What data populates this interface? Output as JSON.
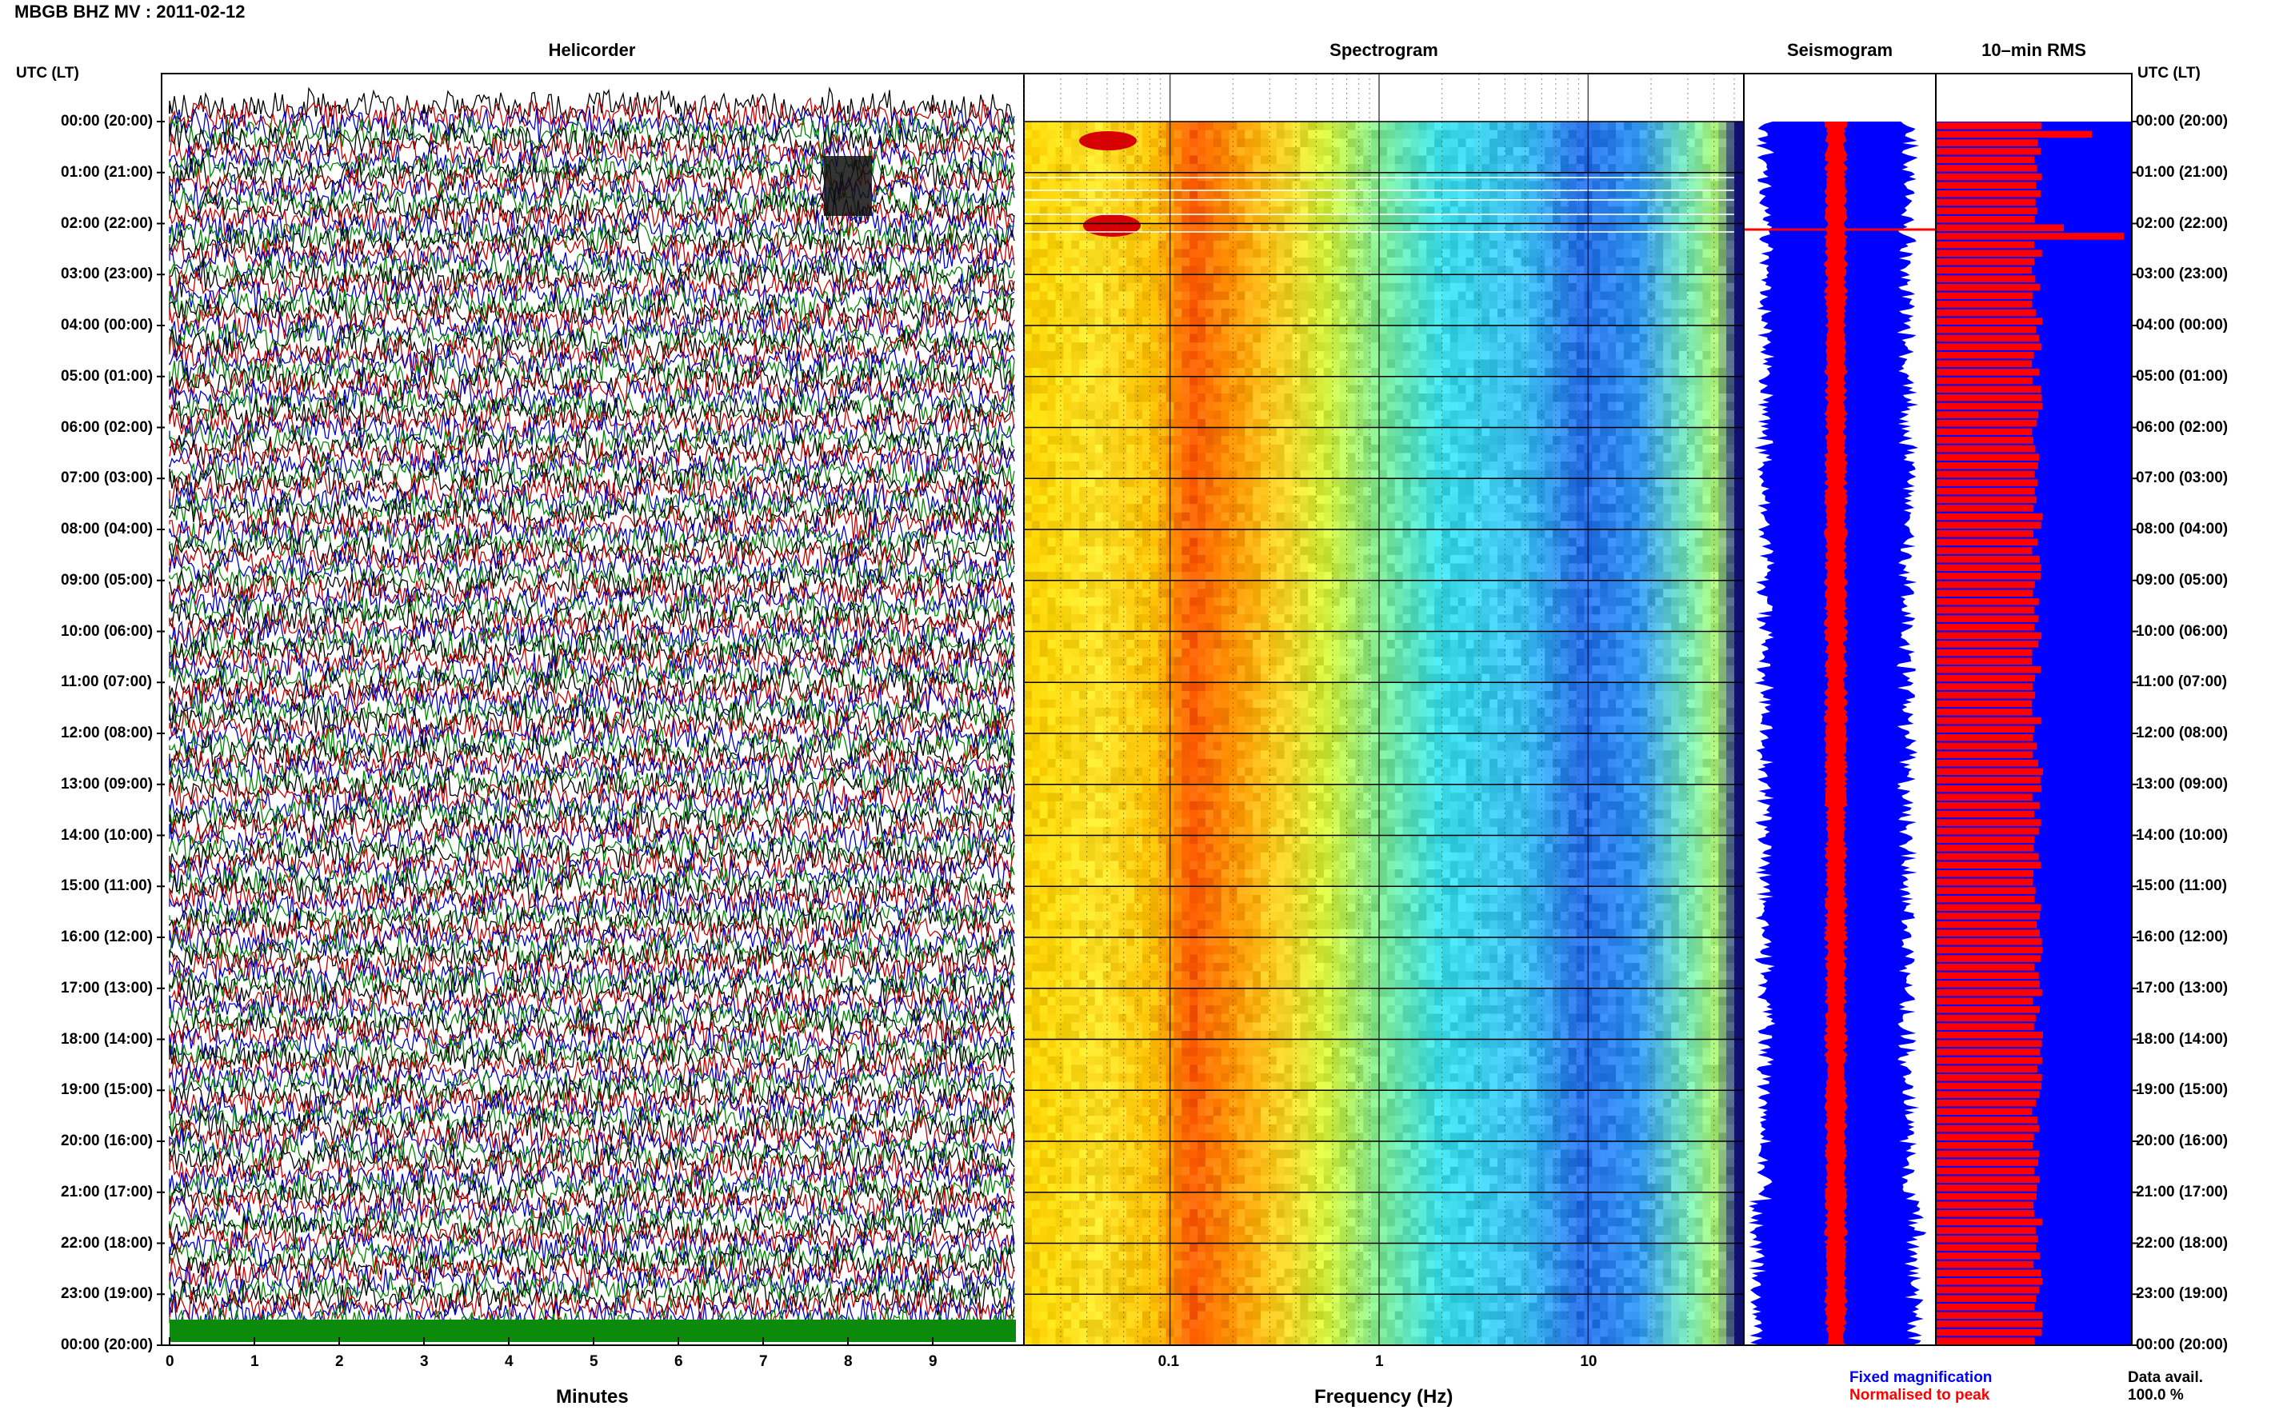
{
  "header": {
    "station_title": "MBGB BHZ MV : 2011-02-12",
    "utc_left_label": "UTC (LT)",
    "utc_right_label": "UTC (LT)"
  },
  "panels": {
    "helicorder": "Helicorder",
    "spectrogram": "Spectrogram",
    "seismogram": "Seismogram",
    "rms": "10–min RMS"
  },
  "time_labels": [
    "00:00 (20:00)",
    "01:00 (21:00)",
    "02:00 (22:00)",
    "03:00 (23:00)",
    "04:00 (00:00)",
    "05:00 (01:00)",
    "06:00 (02:00)",
    "07:00 (03:00)",
    "08:00 (04:00)",
    "09:00 (05:00)",
    "10:00 (06:00)",
    "11:00 (07:00)",
    "12:00 (08:00)",
    "13:00 (09:00)",
    "14:00 (10:00)",
    "15:00 (11:00)",
    "16:00 (12:00)",
    "17:00 (13:00)",
    "18:00 (14:00)",
    "19:00 (15:00)",
    "20:00 (16:00)",
    "21:00 (17:00)",
    "22:00 (18:00)",
    "23:00 (19:00)",
    "00:00 (20:00)"
  ],
  "axes": {
    "helicorder_xlabel": "Minutes",
    "spectrogram_xlabel": "Frequency (Hz)"
  },
  "legend": {
    "fixed": "Fixed magnification",
    "normalised": "Normalised to peak",
    "fixed_color": "#0000ff",
    "normalised_color": "#ff0000"
  },
  "data_avail": {
    "label": "Data avail.",
    "value": "100.0 %"
  },
  "chart_data": [
    {
      "type": "line",
      "title": "Helicorder",
      "xlabel": "Minutes",
      "x_ticks": [
        "0",
        "1",
        "2",
        "3",
        "4",
        "5",
        "6",
        "7",
        "8",
        "9"
      ],
      "xlim": [
        0,
        10
      ],
      "trace_colors": [
        "#000000",
        "#cc0000",
        "#0000cc",
        "#008800"
      ]
    },
    {
      "type": "heatmap",
      "title": "Spectrogram",
      "xlabel": "Frequency (Hz)",
      "x_scale": "log",
      "x_ticks": [
        "0.1",
        "1",
        "10"
      ],
      "xlim": [
        0.02,
        50
      ],
      "y": "time 00:00–24:00 UTC"
    },
    {
      "type": "area",
      "title": "Seismogram",
      "series": [
        {
          "name": "Fixed magnification",
          "color": "#0000ff"
        },
        {
          "name": "Normalised to peak",
          "color": "#ff0000"
        }
      ]
    },
    {
      "type": "bar",
      "title": "10–min RMS",
      "series_color_fixed": "#0000ff",
      "series_color_normalised": "#ff0000",
      "rows_per_hour": 6
    }
  ]
}
